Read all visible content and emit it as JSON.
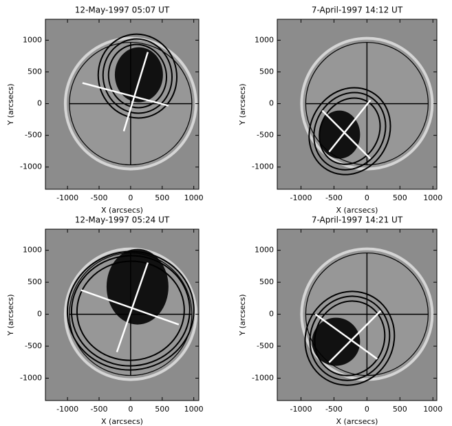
{
  "chart_data": [
    {
      "type": "image",
      "title": "12-May-1997 05:07 UT",
      "xlabel": "X (arcsecs)",
      "ylabel": "Y (arcsecs)",
      "xlim": [
        -1350,
        1080
      ],
      "ylim": [
        -1350,
        1330
      ],
      "xticks": [
        -1000,
        -500,
        0,
        500,
        1000
      ],
      "yticks": [
        -1000,
        -500,
        0,
        500,
        1000
      ]
    },
    {
      "type": "image",
      "title": "7-April-1997 14:12 UT",
      "xlabel": "X (arcsecs)",
      "ylabel": "Y (arcsecs)",
      "xlim": [
        -1360,
        1060
      ],
      "ylim": [
        -1350,
        1330
      ],
      "xticks": [
        -1000,
        -500,
        0,
        500,
        1000
      ],
      "yticks": [
        -1000,
        -500,
        0,
        500,
        1000
      ]
    },
    {
      "type": "image",
      "title": "12-May-1997 05:24 UT",
      "xlabel": "X (arcsecs)",
      "ylabel": "Y (arcsecs)",
      "xlim": [
        -1350,
        1080
      ],
      "ylim": [
        -1350,
        1330
      ],
      "xticks": [
        -1000,
        -500,
        0,
        500,
        1000
      ],
      "yticks": [
        -1000,
        -500,
        0,
        500,
        1000
      ]
    },
    {
      "type": "image",
      "title": "7-April-1997 14:21 UT",
      "xlabel": "X (arcsecs)",
      "ylabel": "Y (arcsecs)",
      "xlim": [
        -1360,
        1060
      ],
      "ylim": [
        -1350,
        1330
      ],
      "xticks": [
        -1000,
        -500,
        0,
        500,
        1000
      ],
      "yticks": [
        -1000,
        -500,
        0,
        500,
        1000
      ]
    }
  ]
}
